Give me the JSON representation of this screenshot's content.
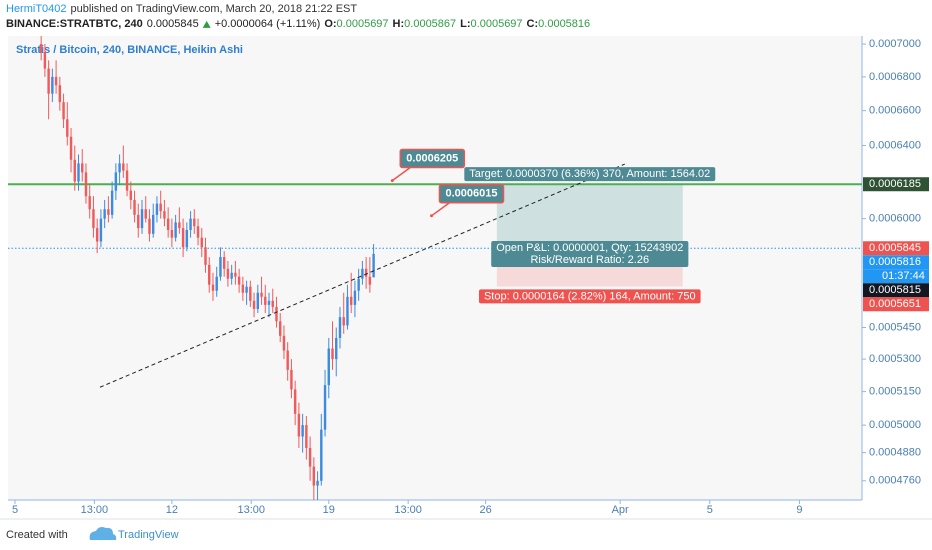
{
  "header": {
    "author": "HermiT0402",
    "published": "published on TradingView.com, March 20, 2018 21:22 EST",
    "symbol": "BINANCE:STRATBTC, 240",
    "last": "0.0005845",
    "change": "+0.0000064 (+1.11%)",
    "ohlc": [
      {
        "label": "O:",
        "value": "0.0005697"
      },
      {
        "label": "H:",
        "value": "0.0005867"
      },
      {
        "label": "L:",
        "value": "0.0005697"
      },
      {
        "label": "C:",
        "value": "0.0005816"
      }
    ]
  },
  "chart_data": {
    "type": "candlestick",
    "title": "Stratis / Bitcoin, 240, BINANCE, Heikin Ashi",
    "log_scale": true,
    "up_color": "#3d8be0",
    "down_color": "#f05a5a",
    "xlim": [
      -7.5,
      907
    ],
    "ylim": [
      0.000468,
      0.000705
    ],
    "xticks": [
      {
        "value": 0,
        "label": "5"
      },
      {
        "value": 85,
        "label": "13:00"
      },
      {
        "value": 168,
        "label": "12"
      },
      {
        "value": 253,
        "label": "13:00"
      },
      {
        "value": 336,
        "label": "19"
      },
      {
        "value": 421,
        "label": "13:00"
      },
      {
        "value": 504,
        "label": "26"
      },
      {
        "value": 648,
        "label": "Apr"
      },
      {
        "value": 744,
        "label": "5"
      },
      {
        "value": 840,
        "label": "9"
      }
    ],
    "yticks": [
      {
        "value": 0.0007,
        "label": "0.0007000"
      },
      {
        "value": 0.00068,
        "label": "0.0006800"
      },
      {
        "value": 0.00066,
        "label": "0.0006600"
      },
      {
        "value": 0.00064,
        "label": "0.0006400"
      },
      {
        "value": 0.0006,
        "label": "0.0006000"
      },
      {
        "value": 0.000545,
        "label": "0.0005450"
      },
      {
        "value": 0.00053,
        "label": "0.0005300"
      },
      {
        "value": 0.000515,
        "label": "0.0005150"
      },
      {
        "value": 0.0005,
        "label": "0.0005000"
      },
      {
        "value": 0.000488,
        "label": "0.0004880"
      },
      {
        "value": 0.000476,
        "label": "0.0004760"
      }
    ],
    "x": [
      28,
      32,
      36,
      40,
      44,
      48,
      52,
      56,
      60,
      64,
      68,
      72,
      76,
      80,
      84,
      88,
      92,
      96,
      100,
      104,
      108,
      112,
      116,
      120,
      124,
      128,
      132,
      136,
      140,
      144,
      148,
      152,
      156,
      160,
      164,
      168,
      172,
      176,
      180,
      184,
      188,
      192,
      196,
      200,
      204,
      208,
      212,
      216,
      220,
      224,
      228,
      232,
      236,
      240,
      244,
      248,
      252,
      256,
      260,
      264,
      268,
      272,
      276,
      280,
      284,
      288,
      292,
      296,
      300,
      304,
      308,
      312,
      316,
      320,
      324,
      328,
      332,
      336,
      340,
      344,
      348,
      352,
      356,
      360,
      364,
      368,
      372,
      376,
      380,
      384
    ],
    "ohlc": [
      [
        0.0007,
        0.000705,
        0.00069,
        0.000695
      ],
      [
        0.000695,
        0.0007,
        0.00068,
        0.000685
      ],
      [
        0.000685,
        0.00069,
        0.000655,
        0.00067
      ],
      [
        0.00067,
        0.000685,
        0.000665,
        0.00068
      ],
      [
        0.00068,
        0.00069,
        0.00067,
        0.000675
      ],
      [
        0.000675,
        0.00068,
        0.00066,
        0.000665
      ],
      [
        0.000665,
        0.00067,
        0.00065,
        0.000655
      ],
      [
        0.000655,
        0.000665,
        0.00064,
        0.000645
      ],
      [
        0.000645,
        0.00065,
        0.000625,
        0.000632
      ],
      [
        0.000632,
        0.00064,
        0.000615,
        0.00062
      ],
      [
        0.00062,
        0.000635,
        0.000615,
        0.00063
      ],
      [
        0.00063,
        0.000638,
        0.00062,
        0.000625
      ],
      [
        0.000625,
        0.00063,
        0.000608,
        0.000612
      ],
      [
        0.000612,
        0.000618,
        0.0006,
        0.000605
      ],
      [
        0.000605,
        0.000612,
        0.00059,
        0.000595
      ],
      [
        0.000595,
        0.0006,
        0.000582,
        0.000588
      ],
      [
        0.000588,
        0.000605,
        0.000585,
        0.0006
      ],
      [
        0.0006,
        0.00061,
        0.000595,
        0.000605
      ],
      [
        0.000605,
        0.000612,
        0.000598,
        0.000602
      ],
      [
        0.000602,
        0.00062,
        0.0006,
        0.000615
      ],
      [
        0.000615,
        0.00063,
        0.00061,
        0.000625
      ],
      [
        0.000625,
        0.000635,
        0.000618,
        0.00063
      ],
      [
        0.00063,
        0.00064,
        0.000622,
        0.000626
      ],
      [
        0.000626,
        0.00063,
        0.000612,
        0.000615
      ],
      [
        0.000615,
        0.00062,
        0.000605,
        0.00061
      ],
      [
        0.00061,
        0.000615,
        0.000598,
        0.000602
      ],
      [
        0.000602,
        0.000608,
        0.00059,
        0.000595
      ],
      [
        0.000595,
        0.00061,
        0.000592,
        0.000605
      ],
      [
        0.000605,
        0.000612,
        0.000598,
        0.0006
      ],
      [
        0.0006,
        0.000605,
        0.000588,
        0.000592
      ],
      [
        0.000592,
        0.000608,
        0.00059,
        0.000602
      ],
      [
        0.000602,
        0.000612,
        0.000598,
        0.000608
      ],
      [
        0.000608,
        0.000615,
        0.0006,
        0.000604
      ],
      [
        0.000604,
        0.00061,
        0.000596,
        0.0006
      ],
      [
        0.0006,
        0.000606,
        0.00059,
        0.000594
      ],
      [
        0.000594,
        0.0006,
        0.000585,
        0.00059
      ],
      [
        0.00059,
        0.000602,
        0.000588,
        0.000598
      ],
      [
        0.000598,
        0.000606,
        0.000592,
        0.000595
      ],
      [
        0.000595,
        0.0006,
        0.00058,
        0.000585
      ],
      [
        0.000585,
        0.000598,
        0.000583,
        0.000594
      ],
      [
        0.000594,
        0.000604,
        0.00059,
        0.0006
      ],
      [
        0.0006,
        0.000605,
        0.000592,
        0.000596
      ],
      [
        0.000596,
        0.0006,
        0.000586,
        0.00059
      ],
      [
        0.00059,
        0.000595,
        0.00058,
        0.000585
      ],
      [
        0.000585,
        0.00059,
        0.000572,
        0.000576
      ],
      [
        0.000576,
        0.00058,
        0.000562,
        0.000566
      ],
      [
        0.000566,
        0.000572,
        0.000558,
        0.000563
      ],
      [
        0.000563,
        0.000575,
        0.00056,
        0.00057
      ],
      [
        0.00057,
        0.000585,
        0.000568,
        0.00058
      ],
      [
        0.00058,
        0.000583,
        0.00057,
        0.000574
      ],
      [
        0.000574,
        0.000578,
        0.000565,
        0.000569
      ],
      [
        0.000569,
        0.000576,
        0.000566,
        0.000572
      ],
      [
        0.000572,
        0.000578,
        0.000566,
        0.00057
      ],
      [
        0.00057,
        0.000574,
        0.000562,
        0.000566
      ],
      [
        0.000566,
        0.00057,
        0.000558,
        0.000562
      ],
      [
        0.000562,
        0.000568,
        0.000556,
        0.000565
      ],
      [
        0.000565,
        0.000568,
        0.000555,
        0.000558
      ],
      [
        0.000558,
        0.000562,
        0.00055,
        0.000554
      ],
      [
        0.000554,
        0.000566,
        0.000552,
        0.000562
      ],
      [
        0.000562,
        0.00057,
        0.000556,
        0.00056
      ],
      [
        0.00056,
        0.000566,
        0.000552,
        0.000556
      ],
      [
        0.000556,
        0.000562,
        0.00055,
        0.000558
      ],
      [
        0.000558,
        0.000564,
        0.000552,
        0.000555
      ],
      [
        0.000555,
        0.00056,
        0.000545,
        0.000548
      ],
      [
        0.000548,
        0.000552,
        0.000538,
        0.000541
      ],
      [
        0.000541,
        0.000546,
        0.00053,
        0.000534
      ],
      [
        0.000534,
        0.000538,
        0.00052,
        0.000525
      ],
      [
        0.000525,
        0.00053,
        0.000512,
        0.000516
      ],
      [
        0.000516,
        0.00052,
        0.0005,
        0.000505
      ],
      [
        0.000505,
        0.00051,
        0.00049,
        0.000495
      ],
      [
        0.000495,
        0.000505,
        0.000488,
        0.0005
      ],
      [
        0.0005,
        0.000504,
        0.000485,
        0.00049
      ],
      [
        0.00049,
        0.000495,
        0.000476,
        0.000482
      ],
      [
        0.000482,
        0.000486,
        0.000468,
        0.000474
      ],
      [
        0.000474,
        0.00048,
        0.000468,
        0.000476
      ],
      [
        0.000476,
        0.000505,
        0.000474,
        0.000498
      ],
      [
        0.000498,
        0.000525,
        0.000495,
        0.000518
      ],
      [
        0.000518,
        0.00054,
        0.000512,
        0.000535
      ],
      [
        0.000535,
        0.000548,
        0.000525,
        0.00053
      ],
      [
        0.00053,
        0.000545,
        0.000522,
        0.00054
      ],
      [
        0.00054,
        0.000555,
        0.000535,
        0.00055
      ],
      [
        0.00055,
        0.000562,
        0.000542,
        0.000546
      ],
      [
        0.000546,
        0.000566,
        0.000544,
        0.00056
      ],
      [
        0.00056,
        0.000572,
        0.000552,
        0.000556
      ],
      [
        0.000556,
        0.000568,
        0.00055,
        0.000563
      ],
      [
        0.000563,
        0.000574,
        0.000558,
        0.000569
      ],
      [
        0.000569,
        0.000578,
        0.000566,
        0.000574
      ],
      [
        0.000574,
        0.00058,
        0.000564,
        0.00057
      ],
      [
        0.00057,
        0.00058,
        0.000562,
        0.000566
      ],
      [
        0.0005697,
        0.0005867,
        0.0005697,
        0.0005816
      ]
    ],
    "horizontal_lines": [
      {
        "value": 0.0006185,
        "color": "#4caf50",
        "style": "solid"
      },
      {
        "value": 0.0005845,
        "color": "#2196f3",
        "style": "dotted"
      }
    ],
    "trend_line": {
      "x": [
        91,
        653
      ],
      "y": [
        0.000517,
        0.0006296
      ]
    },
    "position": {
      "x": [
        516,
        715
      ],
      "entry": 0.0005815,
      "target": 0.0006185,
      "stop": 0.0005651,
      "target_label": "Target: 0.0000370 (6.36%) 370, Amount: 1564.02",
      "pnl_label": "Open P&L: 0.0000001, Qty: 15243902",
      "ratio_label": "Risk/Reward Ratio: 2.26",
      "stop_label": "Stop: 0.0000164 (2.82%) 164, Amount: 750"
    },
    "callouts": [
      {
        "x": 404,
        "value": 0.0006205
      },
      {
        "x": 446,
        "value": 0.0006015
      }
    ],
    "price_tags": [
      {
        "value": 0.0006185,
        "color": "#2e5233"
      },
      {
        "value": 0.0005845,
        "color": "#ef5350"
      },
      {
        "value": 0.0005816,
        "color": "#2196f3",
        "countdown": "01:37:44"
      },
      {
        "value": 0.0005815,
        "color": "#131722"
      },
      {
        "value": 0.0005651,
        "color": "#ef5350"
      }
    ]
  },
  "footer": {
    "created": "Created with",
    "brand": "TradingView"
  }
}
